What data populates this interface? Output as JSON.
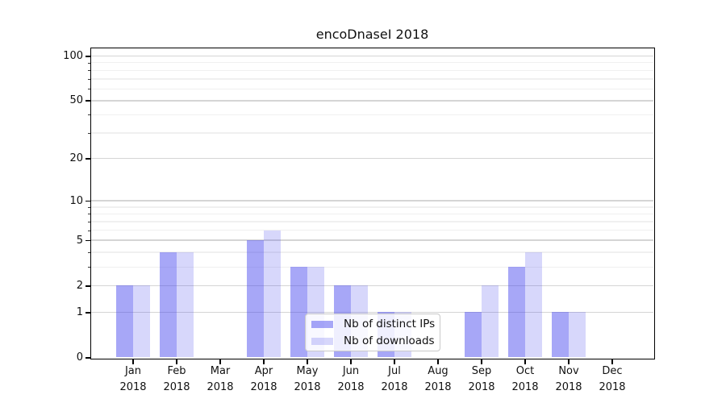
{
  "chart_data": {
    "type": "bar",
    "title": "encoDnaseI 2018",
    "x": {
      "categories": [
        "Jan",
        "Feb",
        "Mar",
        "Apr",
        "May",
        "Jun",
        "Jul",
        "Aug",
        "Sep",
        "Oct",
        "Nov",
        "Dec"
      ],
      "sub_label": "2018"
    },
    "y_axis": {
      "scale": "log1p",
      "major_ticks": [
        0,
        1,
        2,
        5,
        10,
        20,
        50,
        100
      ],
      "minor_gridlines": [
        3,
        4,
        6,
        7,
        8,
        9,
        30,
        40,
        60,
        70,
        80,
        90
      ],
      "range_max": 113
    },
    "series": [
      {
        "name": "Nb of distinct IPs",
        "color": "rgba(68,68,238,0.47)",
        "values": [
          2,
          4,
          0,
          5,
          3,
          2,
          1,
          0,
          1,
          3,
          1,
          0
        ]
      },
      {
        "name": "Nb of downloads",
        "color": "rgba(68,68,238,0.21)",
        "values": [
          2,
          4,
          0,
          6,
          3,
          2,
          1,
          0,
          2,
          4,
          1,
          0
        ]
      }
    ],
    "legend": {
      "position": "lower-center"
    },
    "grid": {
      "major_color": "#d5d5d5",
      "minor_color": "#f0f0f0"
    }
  }
}
